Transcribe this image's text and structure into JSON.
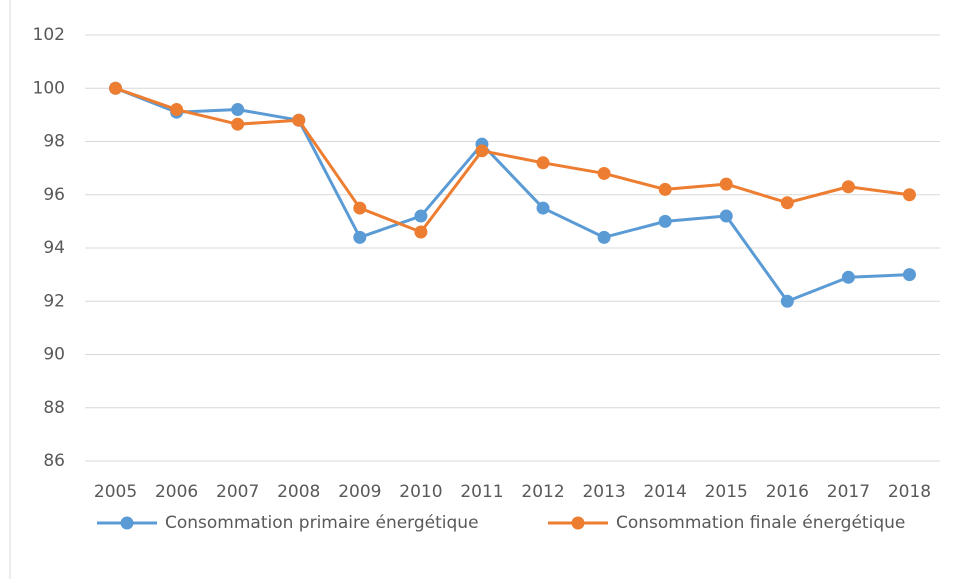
{
  "chart_data": {
    "type": "line",
    "categories": [
      "2005",
      "2006",
      "2007",
      "2008",
      "2009",
      "2010",
      "2011",
      "2012",
      "2013",
      "2014",
      "2015",
      "2016",
      "2017",
      "2018"
    ],
    "series": [
      {
        "name": "Consommation primaire énergétique",
        "color": "#5b9bd5",
        "values": [
          100,
          99.1,
          99.2,
          98.8,
          94.4,
          95.2,
          97.9,
          95.5,
          94.4,
          95.0,
          95.2,
          92.0,
          92.9,
          93.0
        ]
      },
      {
        "name": "Consommation finale énergétique",
        "color": "#ed7d31",
        "values": [
          100,
          99.2,
          98.65,
          98.8,
          95.5,
          94.6,
          97.65,
          97.2,
          96.8,
          96.2,
          96.4,
          95.7,
          96.3,
          96.0
        ]
      }
    ],
    "ylim": [
      86,
      102
    ],
    "yticks": [
      86,
      88,
      90,
      92,
      94,
      96,
      98,
      100,
      102
    ],
    "grid": true,
    "legend": "bottom"
  }
}
